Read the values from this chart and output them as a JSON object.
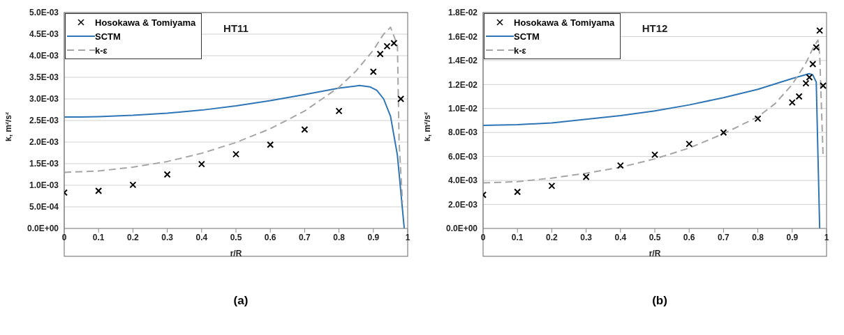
{
  "chart_data": [
    {
      "type": "line",
      "title": "HT11",
      "xlabel": "r/R",
      "ylabel": "k, m²/s²",
      "xlim": [
        0,
        1
      ],
      "xticks": [
        0,
        0.1,
        0.2,
        0.3,
        0.4,
        0.5,
        0.6,
        0.7,
        0.8,
        0.9,
        1
      ],
      "ylim": [
        0,
        0.005
      ],
      "yticks": [
        {
          "value": 0,
          "label": "0.0E+00"
        },
        {
          "value": 0.0005,
          "label": "5.0E-04"
        },
        {
          "value": 0.001,
          "label": "1.0E-03"
        },
        {
          "value": 0.0015,
          "label": "1.5E-03"
        },
        {
          "value": 0.002,
          "label": "2.0E-03"
        },
        {
          "value": 0.0025,
          "label": "2.5E-03"
        },
        {
          "value": 0.003,
          "label": "3.0E-03"
        },
        {
          "value": 0.0035,
          "label": "3.5E-03"
        },
        {
          "value": 0.004,
          "label": "4.0E-03"
        },
        {
          "value": 0.0045,
          "label": "4.5E-03"
        },
        {
          "value": 0.005,
          "label": "5.0E-03"
        }
      ],
      "grid": "y",
      "legend": "top left",
      "annotations": [
        "(a)"
      ],
      "series": [
        {
          "name": "Hosokawa & Tomiyama",
          "type": "scatter",
          "marker": "cross",
          "color": "#000000",
          "x": [
            0,
            0.1,
            0.2,
            0.3,
            0.4,
            0.5,
            0.6,
            0.7,
            0.8,
            0.9,
            0.92,
            0.94,
            0.96,
            0.98
          ],
          "values": [
            0.00083,
            0.00087,
            0.00101,
            0.00125,
            0.00149,
            0.00172,
            0.00194,
            0.00229,
            0.00272,
            0.00363,
            0.00404,
            0.00422,
            0.00429,
            0.003
          ]
        },
        {
          "name": "SCTM",
          "line_style": "solid",
          "marker": "none",
          "color": "#2e75b6",
          "x": [
            0,
            0.05,
            0.1,
            0.2,
            0.3,
            0.4,
            0.5,
            0.6,
            0.7,
            0.8,
            0.86,
            0.89,
            0.91,
            0.93,
            0.95,
            0.97,
            0.99
          ],
          "values": [
            0.00258,
            0.00258,
            0.00259,
            0.00262,
            0.00267,
            0.00274,
            0.00284,
            0.00296,
            0.0031,
            0.00325,
            0.00331,
            0.00328,
            0.0032,
            0.003,
            0.0026,
            0.0017,
            0
          ]
        },
        {
          "name": "k-ε",
          "line_style": "dashed",
          "marker": "none",
          "color": "#a6a6a6",
          "x": [
            0,
            0.1,
            0.2,
            0.3,
            0.4,
            0.5,
            0.6,
            0.7,
            0.8,
            0.85,
            0.9,
            0.93,
            0.95,
            0.965,
            0.97,
            0.975,
            0.985
          ],
          "values": [
            0.0013,
            0.00133,
            0.00142,
            0.00155,
            0.00174,
            0.00199,
            0.00231,
            0.00272,
            0.00327,
            0.00365,
            0.00413,
            0.0045,
            0.00466,
            0.00435,
            0.0043,
            0.002,
            0.0006
          ]
        }
      ]
    },
    {
      "type": "line",
      "title": "HT12",
      "xlabel": "r/R",
      "ylabel": "k, m²/s²",
      "xlim": [
        0,
        1
      ],
      "xticks": [
        0,
        0.1,
        0.2,
        0.3,
        0.4,
        0.5,
        0.6,
        0.7,
        0.8,
        0.9,
        1
      ],
      "ylim": [
        0,
        0.018
      ],
      "yticks": [
        {
          "value": 0,
          "label": "0.0E+00"
        },
        {
          "value": 0.002,
          "label": "2.0E-03"
        },
        {
          "value": 0.004,
          "label": "4.0E-03"
        },
        {
          "value": 0.006,
          "label": "6.0E-03"
        },
        {
          "value": 0.008,
          "label": "8.0E-03"
        },
        {
          "value": 0.01,
          "label": "1.0E-02"
        },
        {
          "value": 0.012,
          "label": "1.2E-02"
        },
        {
          "value": 0.014,
          "label": "1.4E-02"
        },
        {
          "value": 0.016,
          "label": "1.6E-02"
        },
        {
          "value": 0.018,
          "label": "1.8E-02"
        }
      ],
      "grid": "y",
      "legend": "top left",
      "annotations": [
        "(b)"
      ],
      "series": [
        {
          "name": "Hosokawa & Tomiyama",
          "type": "scatter",
          "marker": "cross",
          "color": "#000000",
          "x": [
            0,
            0.1,
            0.2,
            0.3,
            0.4,
            0.5,
            0.6,
            0.7,
            0.8,
            0.9,
            0.92,
            0.94,
            0.95,
            0.96,
            0.97,
            0.98,
            0.99
          ],
          "values": [
            0.0028,
            0.00305,
            0.00355,
            0.0043,
            0.00525,
            0.00615,
            0.00705,
            0.008,
            0.00915,
            0.0105,
            0.011,
            0.0121,
            0.0126,
            0.0137,
            0.0151,
            0.0165,
            0.0119
          ]
        },
        {
          "name": "SCTM",
          "line_style": "solid",
          "marker": "none",
          "color": "#2e75b6",
          "x": [
            0,
            0.1,
            0.2,
            0.3,
            0.4,
            0.5,
            0.6,
            0.7,
            0.8,
            0.9,
            0.95,
            0.96,
            0.97,
            0.98
          ],
          "values": [
            0.0086,
            0.00865,
            0.0088,
            0.0091,
            0.0094,
            0.0098,
            0.0103,
            0.0109,
            0.0116,
            0.0125,
            0.0129,
            0.0128,
            0.0122,
            0
          ]
        },
        {
          "name": "k-ε",
          "line_style": "dashed",
          "marker": "none",
          "color": "#a6a6a6",
          "x": [
            0,
            0.1,
            0.2,
            0.3,
            0.4,
            0.5,
            0.6,
            0.7,
            0.8,
            0.85,
            0.9,
            0.94,
            0.96,
            0.975,
            0.98,
            0.99
          ],
          "values": [
            0.0038,
            0.0039,
            0.0042,
            0.0046,
            0.0051,
            0.0058,
            0.0067,
            0.0079,
            0.0093,
            0.0104,
            0.012,
            0.0138,
            0.015,
            0.0157,
            0.0145,
            0.006
          ]
        }
      ]
    }
  ]
}
